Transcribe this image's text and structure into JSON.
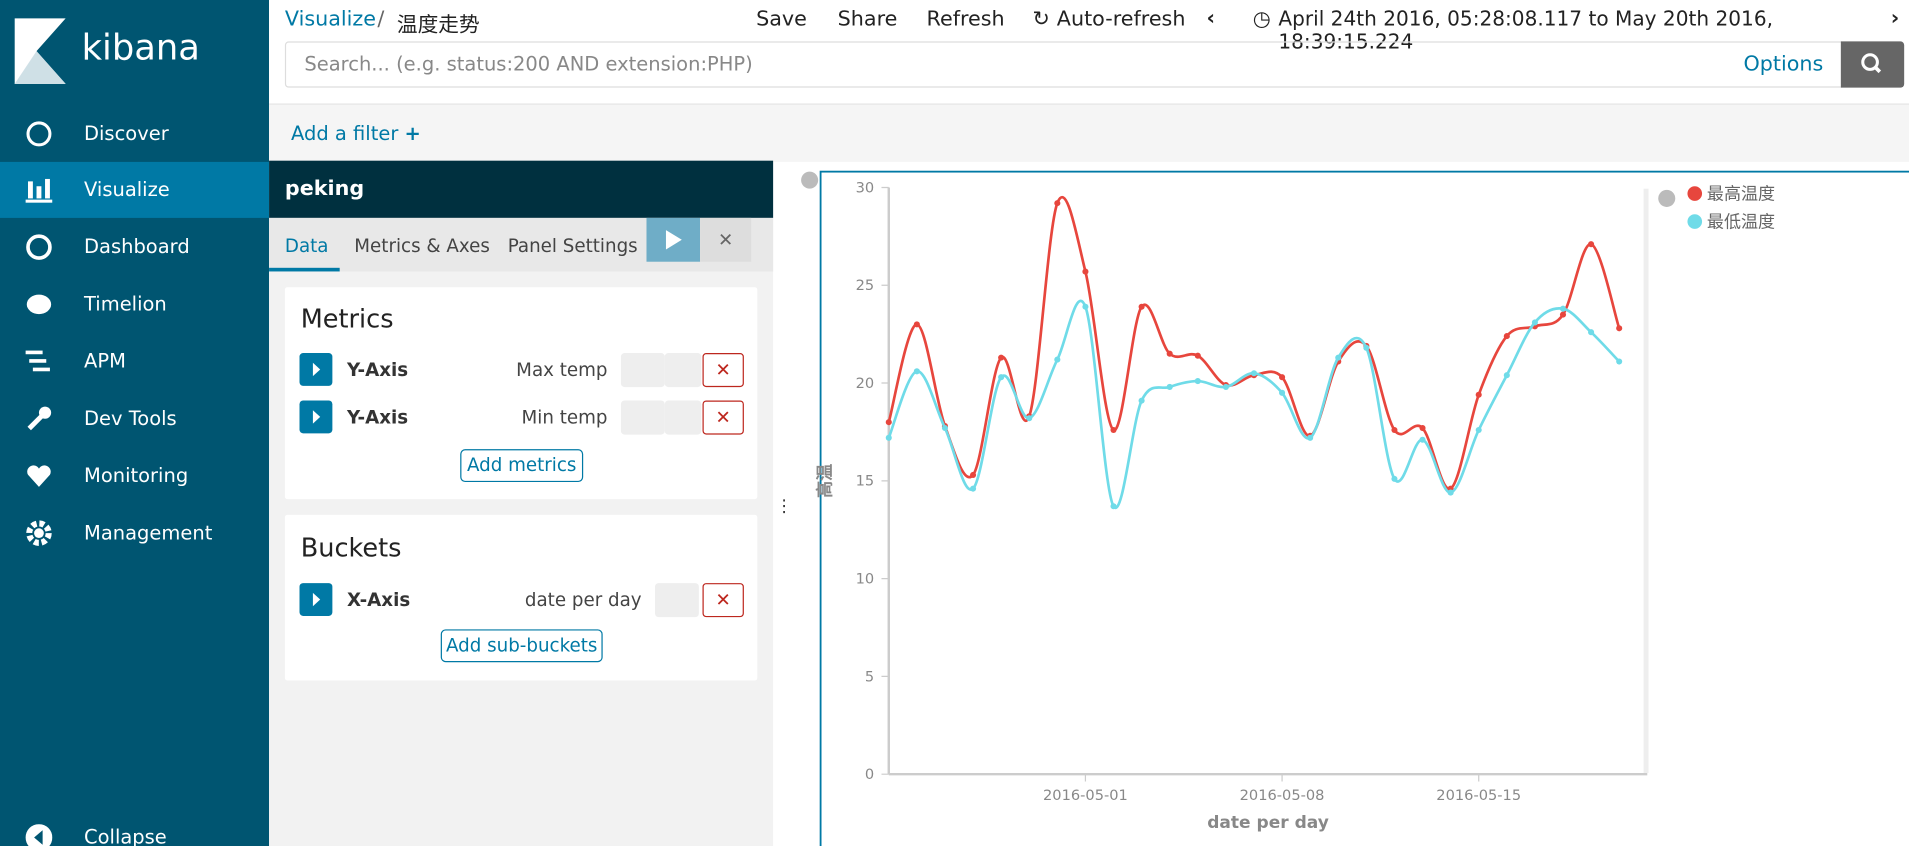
{
  "sidebar": {
    "logo": "kibana",
    "nav": [
      "Discover",
      "Visualize",
      "Dashboard",
      "Timelion",
      "APM",
      "Dev Tools",
      "Monitoring",
      "Management"
    ],
    "collapse": "Collapse"
  },
  "header": {
    "breadcrumb": [
      "Visualize",
      "温度走势"
    ],
    "actions": [
      "Save",
      "Share",
      "Refresh",
      "Auto-refresh"
    ],
    "time_range": "April 24th 2016, 05:28:08.117 to May 20th 2016, 18:39:15.224"
  },
  "search": {
    "placeholder": "Search... (e.g. status:200 AND extension:PHP)",
    "options": "Options"
  },
  "filter": "Add a filter",
  "editor": {
    "title": "peking",
    "tabs": [
      "Data",
      "Metrics & Axes",
      "Panel Settings"
    ],
    "metrics": {
      "heading": "Metrics",
      "rows": [
        {
          "axis": "Y-Axis",
          "label": "Max temp"
        },
        {
          "axis": "Y-Axis",
          "label": "Min temp"
        }
      ],
      "add": "Add metrics"
    },
    "buckets": {
      "heading": "Buckets",
      "rows": [
        {
          "axis": "X-Axis",
          "label": "date per day"
        }
      ],
      "add": "Add sub-buckets"
    }
  },
  "chart_data": {
    "type": "line",
    "x_label": "date per day",
    "y_label": "高温",
    "x": [
      "2016-04-24",
      "2016-04-25",
      "2016-04-26",
      "2016-04-27",
      "2016-04-28",
      "2016-04-29",
      "2016-04-30",
      "2016-05-01",
      "2016-05-02",
      "2016-05-03",
      "2016-05-04",
      "2016-05-05",
      "2016-05-06",
      "2016-05-07",
      "2016-05-08",
      "2016-05-09",
      "2016-05-10",
      "2016-05-11",
      "2016-05-12",
      "2016-05-13",
      "2016-05-14",
      "2016-05-15",
      "2016-05-16",
      "2016-05-17",
      "2016-05-18",
      "2016-05-19",
      "2016-05-20"
    ],
    "series": [
      {
        "name": "最高温度",
        "color": "#e7463d",
        "values": [
          18.0,
          23.0,
          17.8,
          15.3,
          21.3,
          18.3,
          29.2,
          25.7,
          17.6,
          23.9,
          21.5,
          21.4,
          19.9,
          20.4,
          20.3,
          17.3,
          21.1,
          21.9,
          17.6,
          17.7,
          14.6,
          19.4,
          22.4,
          22.9,
          23.5,
          27.1,
          22.8
        ]
      },
      {
        "name": "最低温度",
        "color": "#6fdbe8",
        "values": [
          17.2,
          20.6,
          17.7,
          14.6,
          20.3,
          18.2,
          21.2,
          23.9,
          13.7,
          19.1,
          19.8,
          20.1,
          19.8,
          20.5,
          19.5,
          17.2,
          21.3,
          21.8,
          15.1,
          17.1,
          14.4,
          17.6,
          20.4,
          23.1,
          23.8,
          22.6,
          21.1
        ]
      }
    ],
    "xlim": [
      "2016-04-24",
      "2016-05-21"
    ],
    "xticks": [
      "2016-05-01",
      "2016-05-08",
      "2016-05-15"
    ],
    "ylim": [
      0,
      30
    ],
    "yticks": [
      0,
      5,
      10,
      15,
      20,
      25,
      30
    ],
    "legend": "top-right",
    "smooth": true
  }
}
